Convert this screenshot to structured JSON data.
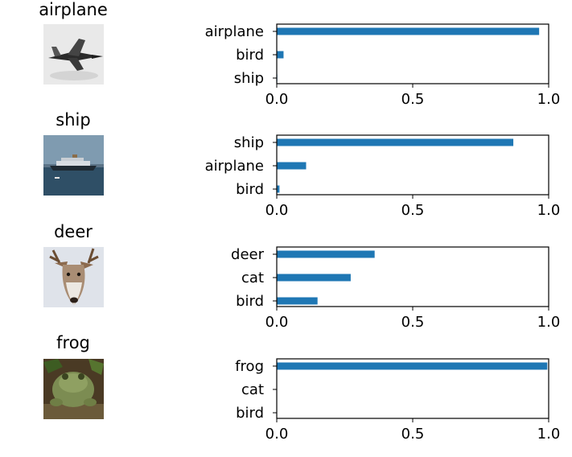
{
  "colors": {
    "bar": "#1f77b4",
    "axes": "#000000",
    "background": "#ffffff"
  },
  "chart_data": [
    {
      "type": "bar",
      "orientation": "horizontal",
      "title": "airplane",
      "image_subject": "airplane",
      "categories": [
        "airplane",
        "bird",
        "ship"
      ],
      "values": [
        0.965,
        0.025,
        0.002
      ],
      "xlim": [
        0,
        1.0
      ],
      "xticks": [
        0.0,
        0.5,
        1.0
      ],
      "xtick_labels": [
        "0.0",
        "0.5",
        "1.0"
      ],
      "xlabel": "",
      "ylabel": "",
      "grid": false
    },
    {
      "type": "bar",
      "orientation": "horizontal",
      "title": "ship",
      "image_subject": "ship",
      "categories": [
        "ship",
        "airplane",
        "bird"
      ],
      "values": [
        0.87,
        0.108,
        0.01
      ],
      "xlim": [
        0,
        1.0
      ],
      "xticks": [
        0.0,
        0.5,
        1.0
      ],
      "xtick_labels": [
        "0.0",
        "0.5",
        "1.0"
      ],
      "xlabel": "",
      "ylabel": "",
      "grid": false
    },
    {
      "type": "bar",
      "orientation": "horizontal",
      "title": "deer",
      "image_subject": "deer",
      "categories": [
        "deer",
        "cat",
        "bird"
      ],
      "values": [
        0.36,
        0.272,
        0.15
      ],
      "xlim": [
        0,
        1.0
      ],
      "xticks": [
        0.0,
        0.5,
        1.0
      ],
      "xtick_labels": [
        "0.0",
        "0.5",
        "1.0"
      ],
      "xlabel": "",
      "ylabel": "",
      "grid": false
    },
    {
      "type": "bar",
      "orientation": "horizontal",
      "title": "frog",
      "image_subject": "frog",
      "categories": [
        "frog",
        "cat",
        "bird"
      ],
      "values": [
        0.995,
        0.001,
        0.001
      ],
      "xlim": [
        0,
        1.0
      ],
      "xticks": [
        0.0,
        0.5,
        1.0
      ],
      "xtick_labels": [
        "0.0",
        "0.5",
        "1.0"
      ],
      "xlabel": "",
      "ylabel": "",
      "grid": false
    }
  ]
}
